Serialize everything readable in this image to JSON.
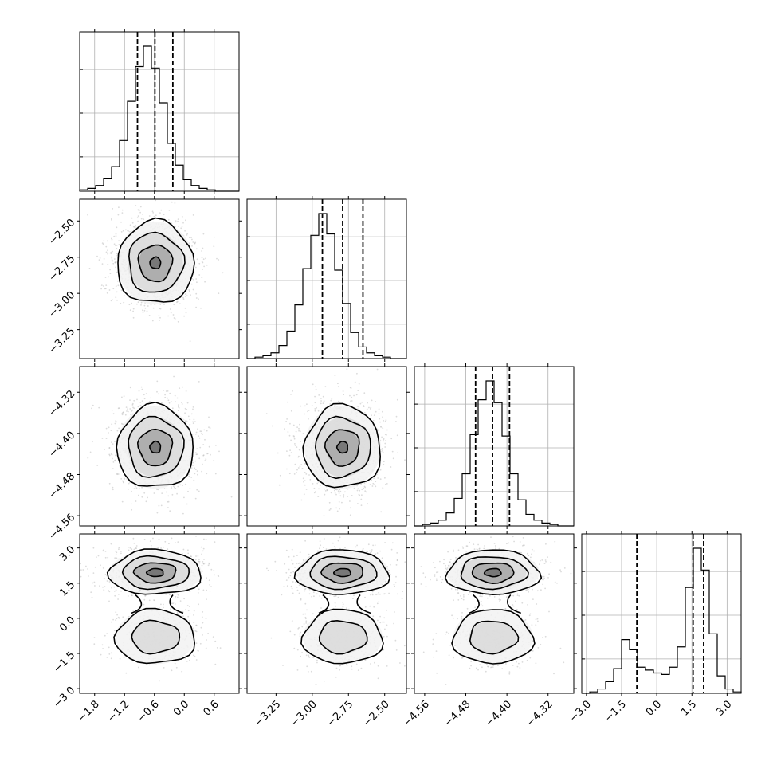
{
  "chart_data": {
    "type": "corner",
    "params": [
      {
        "mean": -0.58,
        "sd": 0.31,
        "range": [
          -2.1,
          1.1
        ],
        "ticks": [
          -1.8,
          -1.2,
          -0.6,
          0.0,
          0.6
        ],
        "tick_labels": [
          "−1.8",
          "−1.2",
          "−0.6",
          "0.0",
          "0.6"
        ],
        "quantiles": [
          -0.94,
          -0.59,
          -0.23
        ]
      },
      {
        "mean": -2.79,
        "sd": 0.15,
        "range": [
          -3.45,
          -2.35
        ],
        "ticks": [
          -3.25,
          -3.0,
          -2.75,
          -2.5
        ],
        "tick_labels": [
          "−3.25",
          "−3.00",
          "−2.75",
          "−2.50"
        ],
        "quantiles": [
          -2.93,
          -2.79,
          -2.65
        ]
      },
      {
        "mean": -4.427,
        "sd": 0.033,
        "range": [
          -4.58,
          -4.27
        ],
        "ticks": [
          -4.56,
          -4.48,
          -4.4,
          -4.32
        ],
        "tick_labels": [
          "−4.56",
          "−4.48",
          "−4.40",
          "−4.32"
        ],
        "quantiles": [
          -4.461,
          -4.428,
          -4.395
        ]
      },
      {
        "bimodal": true,
        "modes": [
          -0.8,
          1.95
        ],
        "weights": [
          0.3,
          0.7
        ],
        "sds": [
          0.5,
          0.3
        ],
        "range": [
          -3.2,
          3.6
        ],
        "ticks": [
          -3.0,
          -1.5,
          0.0,
          1.5,
          3.0
        ],
        "tick_labels": [
          "−3.0",
          "−1.5",
          "0.0",
          "1.5",
          "3.0"
        ],
        "quantiles": [
          -0.85,
          1.55,
          2.0
        ]
      }
    ],
    "histograms": [
      {
        "bins": 20,
        "counts": [
          1,
          2,
          4,
          9,
          17,
          35,
          62,
          86,
          100,
          85,
          61,
          33,
          18,
          8,
          4,
          2,
          1,
          0,
          0,
          0
        ]
      },
      {
        "bins": 20,
        "counts": [
          0,
          1,
          2,
          4,
          9,
          19,
          37,
          62,
          85,
          100,
          86,
          61,
          38,
          18,
          8,
          4,
          2,
          1,
          0,
          0
        ]
      },
      {
        "bins": 20,
        "counts": [
          0,
          1,
          2,
          4,
          9,
          19,
          36,
          63,
          87,
          100,
          85,
          62,
          36,
          18,
          8,
          4,
          2,
          1,
          0,
          0
        ]
      },
      {
        "bins": 20,
        "counts": [
          0,
          1,
          3,
          8,
          17,
          37,
          30,
          18,
          16,
          14,
          13,
          18,
          32,
          73,
          100,
          85,
          41,
          12,
          3,
          1
        ]
      }
    ]
  }
}
